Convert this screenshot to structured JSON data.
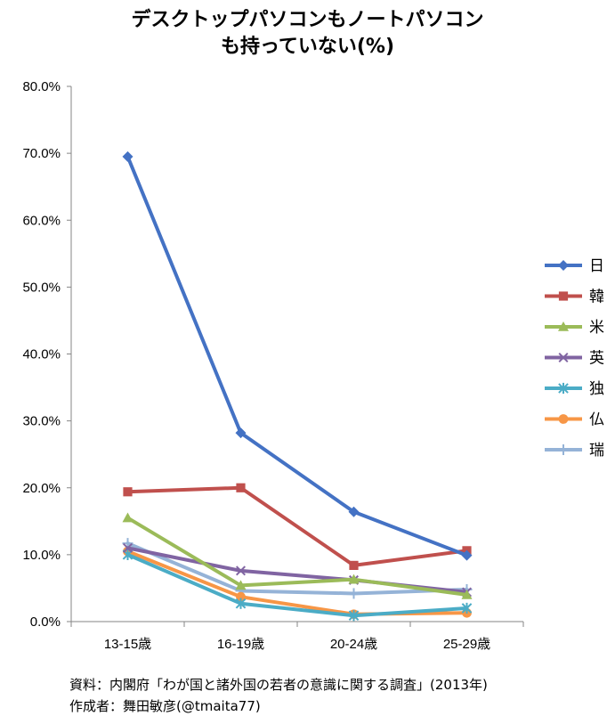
{
  "chart_data": {
    "type": "line",
    "title_lines": [
      "デスクトップパソコンもノートパソコン",
      "も持っていない(%)"
    ],
    "categories": [
      "13-15歳",
      "16-19歳",
      "20-24歳",
      "25-29歳"
    ],
    "ylim": [
      0,
      80
    ],
    "y_ticks": [
      "0.0%",
      "10.0%",
      "20.0%",
      "30.0%",
      "40.0%",
      "50.0%",
      "60.0%",
      "70.0%",
      "80.0%"
    ],
    "y_tick_values": [
      0,
      10,
      20,
      30,
      40,
      50,
      60,
      70,
      80
    ],
    "grid": false,
    "legend_position": "right",
    "series": [
      {
        "name": "日",
        "color": "#4472C4",
        "marker": "diamond",
        "values": [
          69.5,
          28.2,
          16.4,
          9.9
        ]
      },
      {
        "name": "韓",
        "color": "#C0504D",
        "marker": "square",
        "values": [
          19.4,
          20.0,
          8.4,
          10.6
        ]
      },
      {
        "name": "米",
        "color": "#9BBB59",
        "marker": "triangle",
        "values": [
          15.5,
          5.4,
          6.3,
          4.0
        ]
      },
      {
        "name": "英",
        "color": "#8064A2",
        "marker": "x",
        "values": [
          11.0,
          7.6,
          6.2,
          4.4
        ]
      },
      {
        "name": "独",
        "color": "#4BACC6",
        "marker": "star",
        "values": [
          10.0,
          2.7,
          0.9,
          2.0
        ]
      },
      {
        "name": "仏",
        "color": "#F79646",
        "marker": "circle",
        "values": [
          10.5,
          3.7,
          1.1,
          1.3
        ]
      },
      {
        "name": "瑞",
        "color": "#95B3D7",
        "marker": "plus",
        "values": [
          11.7,
          4.6,
          4.2,
          4.8
        ]
      }
    ]
  },
  "source_lines": [
    "資料：内閣府「わが国と諸外国の若者の意識に関する調査」(2013年)",
    "作成者：舞田敏彦(@tmaita77)"
  ]
}
